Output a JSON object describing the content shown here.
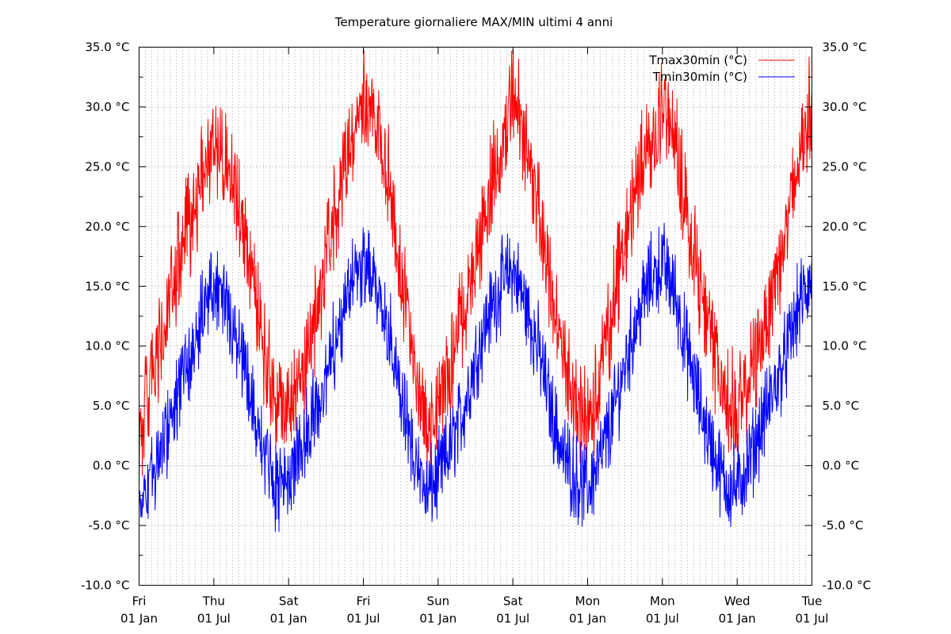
{
  "chart_data": {
    "type": "line",
    "title": "Temperature giornaliere MAX/MIN ultimi 4 anni",
    "xlabel": "",
    "ylabel": "",
    "x_start": "Fri 01 Jan",
    "x_end": "Tue 01 Jul",
    "x_ticks": [
      {
        "day": "Fri",
        "date": "01 Jan"
      },
      {
        "day": "Thu",
        "date": "01 Jul"
      },
      {
        "day": "Sat",
        "date": "01 Jan"
      },
      {
        "day": "Fri",
        "date": "01 Jul"
      },
      {
        "day": "Sun",
        "date": "01 Jan"
      },
      {
        "day": "Sat",
        "date": "01 Jul"
      },
      {
        "day": "Mon",
        "date": "01 Jan"
      },
      {
        "day": "Mon",
        "date": "01 Jul"
      },
      {
        "day": "Wed",
        "date": "01 Jan"
      },
      {
        "day": "Tue",
        "date": "01 Jul"
      }
    ],
    "y_ticks": [
      "-10.0 °C",
      "-5.0 °C",
      "0.0 °C",
      "5.0 °C",
      "10.0 °C",
      "15.0 °C",
      "20.0 °C",
      "25.0 °C",
      "30.0 °C",
      "35.0 °C"
    ],
    "ylim": [
      -10,
      35
    ],
    "y_unit": "°C",
    "grid": true,
    "legend_position": "top-right",
    "series": [
      {
        "name": "Tmax30min (°C)",
        "color": "#ff0000",
        "x_months": [
          0,
          1,
          2,
          3,
          4,
          5,
          6,
          7,
          8,
          9,
          10,
          11,
          12,
          13,
          14,
          15,
          16,
          17,
          18,
          19,
          20,
          21,
          22,
          23,
          24,
          25,
          26,
          27,
          28,
          29,
          30,
          31,
          32,
          33,
          34,
          35,
          36,
          37,
          38,
          39,
          40,
          41,
          42,
          43,
          44,
          45,
          46,
          47,
          48,
          49,
          50,
          51,
          52,
          53,
          54
        ],
        "values": [
          2.5,
          7.0,
          11.0,
          16.0,
          20.0,
          24.0,
          27.0,
          26.0,
          22.0,
          16.0,
          10.0,
          5.0,
          5.5,
          7.5,
          11.5,
          17.0,
          23.0,
          27.0,
          31.0,
          29.0,
          24.0,
          16.0,
          10.0,
          3.0,
          5.0,
          8.0,
          13.0,
          16.5,
          22.0,
          26.0,
          31.0,
          27.0,
          22.0,
          15.0,
          9.0,
          5.0,
          4.0,
          7.0,
          13.0,
          19.0,
          24.0,
          27.0,
          30.0,
          27.0,
          21.0,
          15.0,
          10.0,
          6.0,
          4.5,
          7.0,
          11.0,
          15.5,
          20.0,
          25.5,
          31.0
        ]
      },
      {
        "name": "Tmin30min (°C)",
        "color": "#0000ff",
        "x_months": [
          0,
          1,
          2,
          3,
          4,
          5,
          6,
          7,
          8,
          9,
          10,
          11,
          12,
          13,
          14,
          15,
          16,
          17,
          18,
          19,
          20,
          21,
          22,
          23,
          24,
          25,
          26,
          27,
          28,
          29,
          30,
          31,
          32,
          33,
          34,
          35,
          36,
          37,
          38,
          39,
          40,
          41,
          42,
          43,
          44,
          45,
          46,
          47,
          48,
          49,
          50,
          51,
          52,
          53,
          54
        ],
        "values": [
          -3.0,
          -1.0,
          2.0,
          5.5,
          9.0,
          13.0,
          15.5,
          14.0,
          10.5,
          5.5,
          1.0,
          -2.0,
          -1.0,
          1.0,
          4.0,
          7.5,
          12.0,
          15.5,
          17.0,
          16.0,
          11.5,
          5.5,
          1.0,
          -2.5,
          -1.0,
          1.5,
          4.5,
          9.0,
          12.5,
          15.0,
          16.5,
          13.5,
          10.0,
          5.0,
          1.0,
          -1.0,
          -2.0,
          0.5,
          4.0,
          8.5,
          12.5,
          15.5,
          17.0,
          14.5,
          9.5,
          5.0,
          1.5,
          -1.5,
          -2.0,
          0.5,
          3.5,
          6.5,
          9.5,
          13.5,
          15.5
        ]
      }
    ]
  }
}
